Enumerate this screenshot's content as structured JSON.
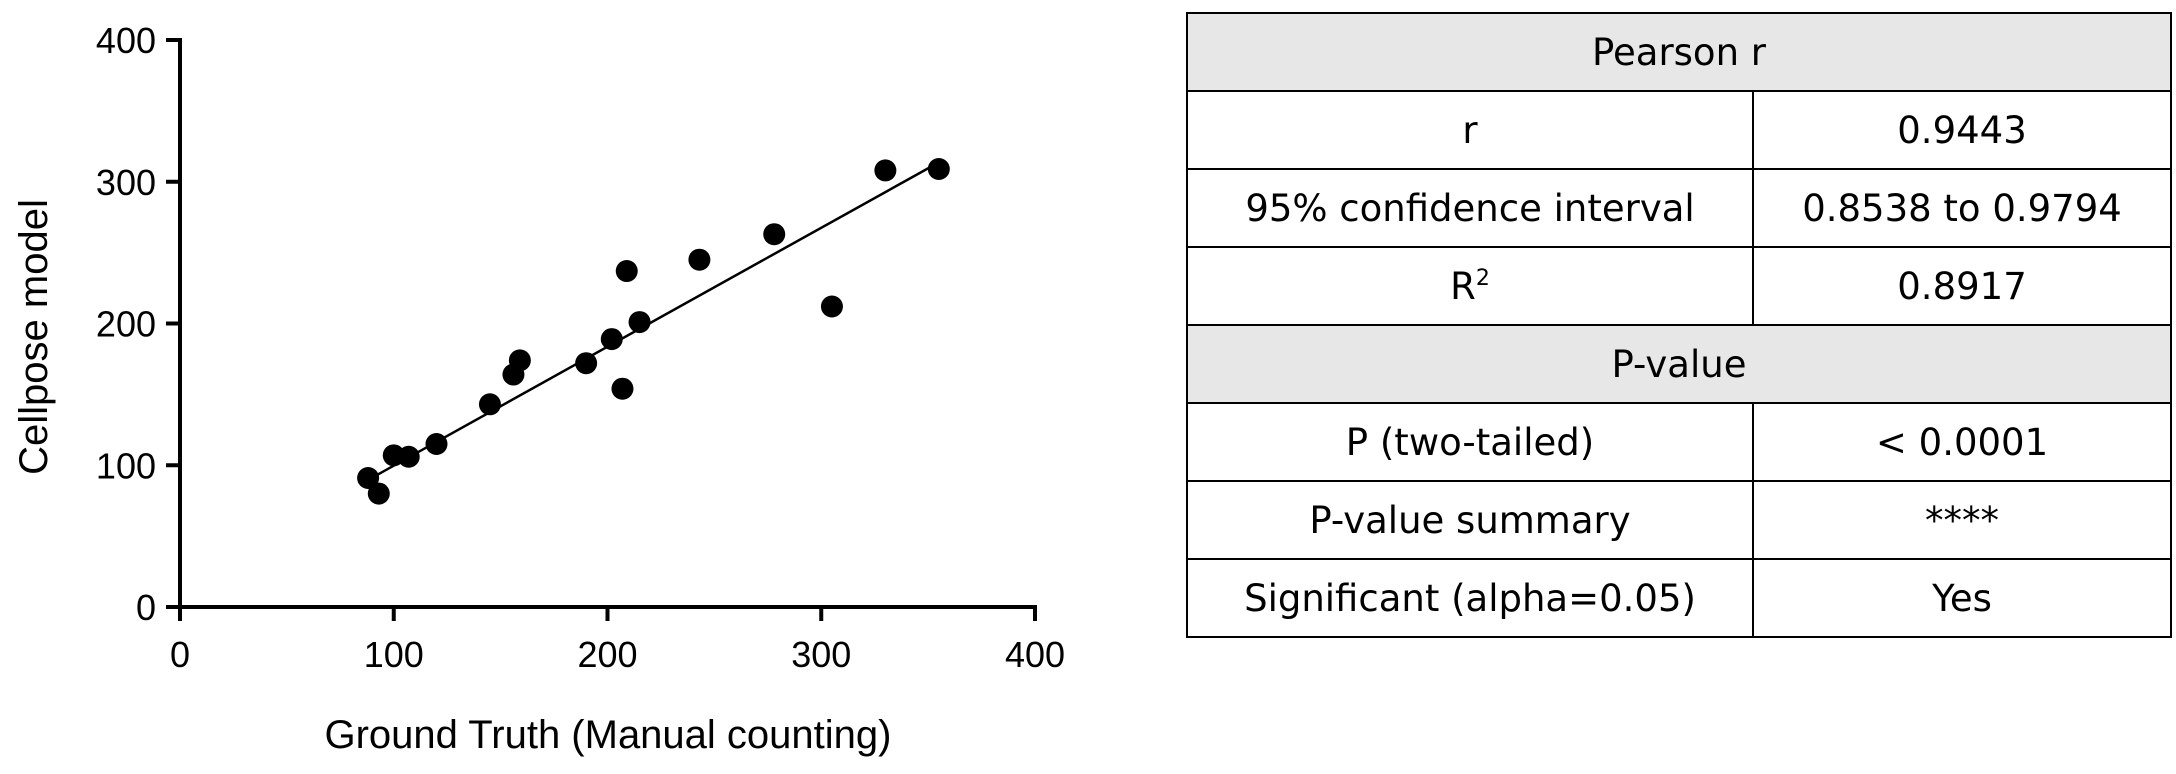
{
  "chart_data": {
    "type": "scatter",
    "title": "",
    "xlabel": "Ground Truth (Manual counting)",
    "ylabel": "Cellpose model",
    "xlim": [
      0,
      400
    ],
    "ylim": [
      0,
      400
    ],
    "xticks": [
      0,
      100,
      200,
      300,
      400
    ],
    "yticks": [
      0,
      100,
      200,
      300,
      400
    ],
    "xtick_labels": [
      "0",
      "100",
      "200",
      "300",
      "400"
    ],
    "ytick_labels": [
      "0",
      "100",
      "200",
      "300",
      "400"
    ],
    "grid": false,
    "points": [
      {
        "x": 88,
        "y": 91
      },
      {
        "x": 93,
        "y": 80
      },
      {
        "x": 100,
        "y": 107
      },
      {
        "x": 107,
        "y": 106
      },
      {
        "x": 120,
        "y": 115
      },
      {
        "x": 145,
        "y": 143
      },
      {
        "x": 156,
        "y": 164
      },
      {
        "x": 159,
        "y": 174
      },
      {
        "x": 190,
        "y": 172
      },
      {
        "x": 202,
        "y": 189
      },
      {
        "x": 207,
        "y": 154
      },
      {
        "x": 209,
        "y": 237
      },
      {
        "x": 215,
        "y": 201
      },
      {
        "x": 243,
        "y": 245
      },
      {
        "x": 278,
        "y": 263
      },
      {
        "x": 305,
        "y": 212
      },
      {
        "x": 330,
        "y": 308
      },
      {
        "x": 355,
        "y": 309
      }
    ],
    "fit_line": {
      "x": [
        92,
        353
      ],
      "y": [
        93,
        312
      ]
    }
  },
  "stats_table": {
    "pearson_header": "Pearson r",
    "rows1": [
      {
        "label": "r",
        "value": "0.9443"
      },
      {
        "label": "95% confidence interval",
        "value": "0.8538 to 0.9794"
      }
    ],
    "r2_label": "R",
    "r2_sup": "2",
    "r2_value": "0.8917",
    "pvalue_header": "P-value",
    "rows2": [
      {
        "label": "P (two-tailed)",
        "value": "< 0.0001"
      },
      {
        "label": "P-value summary",
        "value": "****"
      },
      {
        "label": "Significant (alpha=0.05)",
        "value": "Yes"
      }
    ]
  }
}
